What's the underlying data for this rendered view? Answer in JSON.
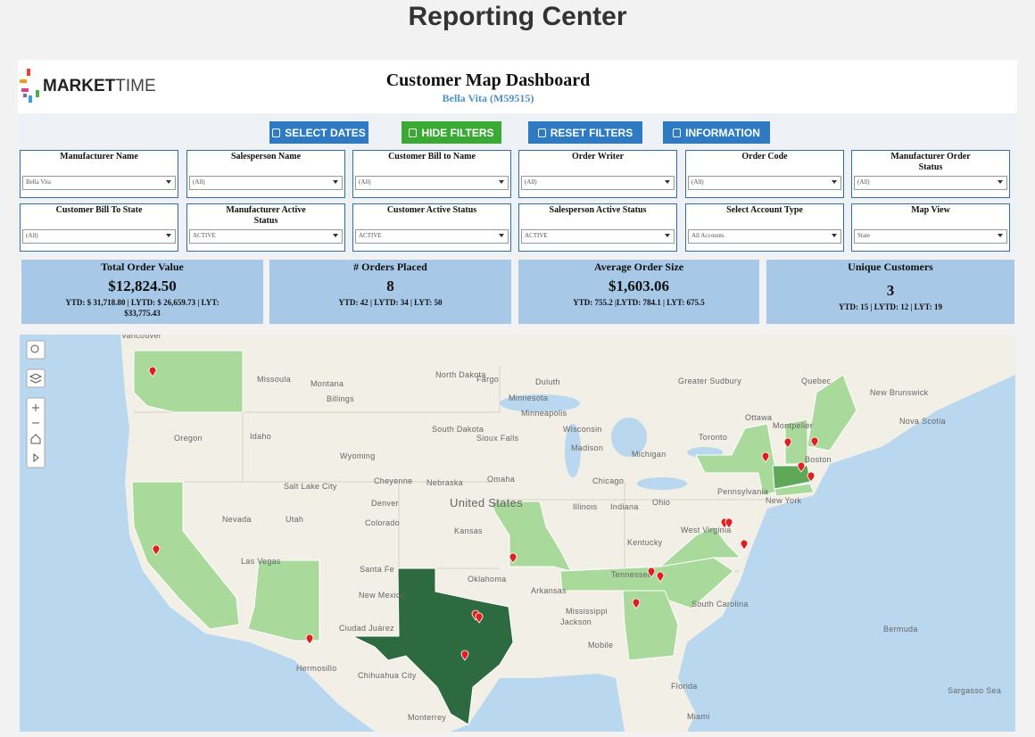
{
  "page_title": "Reporting Center",
  "header": {
    "logo_main": "MARKET",
    "logo_accent": "TIME",
    "title": "Customer Map Dashboard",
    "subtitle": "Bella Vita (M59515)"
  },
  "buttons": [
    "SELECT DATES",
    "HIDE FILTERS",
    "RESET FILTERS",
    "INFORMATION"
  ],
  "filters": [
    {
      "label": "Manufacturer Name",
      "value": "Bella Vita"
    },
    {
      "label": "Salesperson Name",
      "value": "(All)"
    },
    {
      "label": "Customer Bill to Name",
      "value": "(All)"
    },
    {
      "label": "Order Writer",
      "value": "(All)"
    },
    {
      "label": "Order Code",
      "value": "(All)"
    },
    {
      "label": "Manufacturer Order Status",
      "value": "(All)"
    },
    {
      "label": "Customer Bill To State",
      "value": "(All)"
    },
    {
      "label": "Manufacturer Active Status",
      "value": "ACTIVE"
    },
    {
      "label": "Customer Active Status",
      "value": "ACTIVE"
    },
    {
      "label": "Salesperson Active Status",
      "value": "ACTIVE"
    },
    {
      "label": "Select Account Type",
      "value": "All Accounts"
    },
    {
      "label": "Map View",
      "value": "State"
    }
  ],
  "kpis": [
    {
      "title": "Total Order Value",
      "value": "$12,824.50",
      "detail": "YTD: $ 31,718.80 | LYTD: $ 26,659.73 | LYT: $33,775.43"
    },
    {
      "title": "# Orders Placed",
      "value": "8",
      "detail": "YTD: 42 | LYTD: 34 | LYT: 50"
    },
    {
      "title": "Average Order Size",
      "value": "$1,603.06",
      "detail": "YTD: 755.2 |LYTD: 784.1 | LYT: 675.5"
    },
    {
      "title": "Unique Customers",
      "value": "3",
      "detail": "YTD: 15 | LYTD: 12 | LYT: 19"
    }
  ],
  "map": {
    "labels": [
      "Vancouver",
      "Missoula",
      "Montana",
      "Billings",
      "North Dakota",
      "Fargo",
      "Duluth",
      "Greater Sudbury",
      "Quebec",
      "Ottawa",
      "New Brunswick",
      "Nova Scotia",
      "Minnesota",
      "Minneapolis",
      "Oregon",
      "Idaho",
      "South Dakota",
      "Sioux Falls",
      "Wisconsin",
      "Toronto",
      "Madison",
      "Michigan",
      "Boston",
      "Wyoming",
      "Cheyenne",
      "Nebraska",
      "Omaha",
      "Chicago",
      "Pennsylvania",
      "Salt Lake City",
      "United States",
      "Denver",
      "Illinois",
      "Indiana",
      "Ohio",
      "New York",
      "Nevada",
      "Utah",
      "Colorado",
      "Kansas",
      "Kentucky",
      "West Virginia",
      "Las Vegas",
      "Santa Fe",
      "Oklahoma",
      "Arkansas",
      "Tennessee",
      "New Mexico",
      "South Carolina",
      "Mississippi",
      "Jackson",
      "Ciudad Juárez",
      "Mobile",
      "Hermosillo",
      "Chihuahua City",
      "Florida",
      "Bermuda",
      "Sargasso Sea",
      "Monterrey",
      "Miami",
      "Montpelier"
    ]
  }
}
